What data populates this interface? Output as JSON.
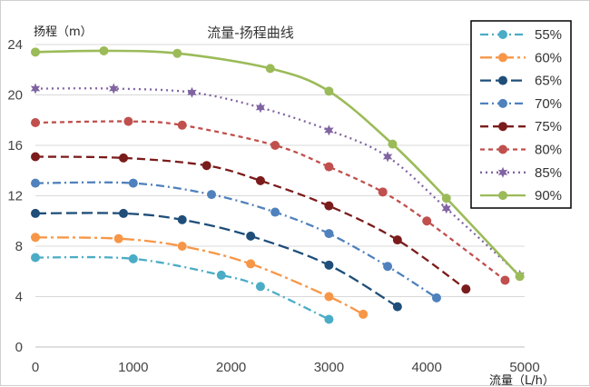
{
  "chart_data": {
    "type": "line",
    "title": "流量-扬程曲线",
    "xlabel": "流量（L/h）",
    "ylabel": "扬程（m）",
    "xlim": [
      0,
      5000
    ],
    "ylim": [
      0,
      24
    ],
    "xticks": [
      0,
      1000,
      2000,
      3000,
      4000,
      5000
    ],
    "yticks": [
      0,
      4,
      8,
      12,
      16,
      20,
      24
    ],
    "grid": "horizontal",
    "legend": "right",
    "series": [
      {
        "name": "55%",
        "color": "#4bacc6",
        "dash": "dashdot",
        "marker": "circle",
        "points": [
          [
            0,
            7.1
          ],
          [
            1000,
            7.0
          ],
          [
            1900,
            5.7
          ],
          [
            2300,
            4.8
          ],
          [
            3000,
            2.2
          ]
        ]
      },
      {
        "name": "60%",
        "color": "#f79646",
        "dash": "longdashdot",
        "marker": "circle",
        "points": [
          [
            0,
            8.7
          ],
          [
            850,
            8.6
          ],
          [
            1500,
            8.0
          ],
          [
            2200,
            6.6
          ],
          [
            3000,
            4.0
          ],
          [
            3350,
            2.6
          ]
        ]
      },
      {
        "name": "65%",
        "color": "#1f4e79",
        "dash": "longdash",
        "marker": "circle",
        "points": [
          [
            0,
            10.6
          ],
          [
            900,
            10.6
          ],
          [
            1500,
            10.1
          ],
          [
            2200,
            8.8
          ],
          [
            3000,
            6.5
          ],
          [
            3700,
            3.2
          ]
        ]
      },
      {
        "name": "70%",
        "color": "#4f81bd",
        "dash": "dashdot",
        "marker": "circle",
        "points": [
          [
            0,
            13.0
          ],
          [
            1000,
            13.0
          ],
          [
            1800,
            12.1
          ],
          [
            2450,
            10.7
          ],
          [
            3000,
            9.0
          ],
          [
            3600,
            6.4
          ],
          [
            4100,
            3.9
          ]
        ]
      },
      {
        "name": "75%",
        "color": "#7b1c1c",
        "dash": "dash",
        "marker": "circle",
        "points": [
          [
            0,
            15.1
          ],
          [
            900,
            15.0
          ],
          [
            1750,
            14.4
          ],
          [
            2300,
            13.2
          ],
          [
            3000,
            11.2
          ],
          [
            3700,
            8.5
          ],
          [
            4400,
            4.6
          ]
        ]
      },
      {
        "name": "80%",
        "color": "#c0504d",
        "dash": "shortdash",
        "marker": "circle",
        "points": [
          [
            0,
            17.8
          ],
          [
            950,
            17.9
          ],
          [
            1500,
            17.6
          ],
          [
            2450,
            16.0
          ],
          [
            3000,
            14.3
          ],
          [
            3550,
            12.3
          ],
          [
            4000,
            10.0
          ],
          [
            4800,
            5.3
          ]
        ]
      },
      {
        "name": "85%",
        "color": "#8064a2",
        "dash": "dot",
        "marker": "star",
        "points": [
          [
            0,
            20.5
          ],
          [
            800,
            20.5
          ],
          [
            1600,
            20.2
          ],
          [
            2300,
            19.0
          ],
          [
            3000,
            17.2
          ],
          [
            3600,
            15.1
          ],
          [
            4200,
            11.0
          ],
          [
            4950,
            5.7
          ]
        ]
      },
      {
        "name": "90%",
        "color": "#9bbb59",
        "dash": "solid",
        "marker": "circle",
        "points": [
          [
            0,
            23.4
          ],
          [
            700,
            23.5
          ],
          [
            1450,
            23.3
          ],
          [
            2400,
            22.1
          ],
          [
            3000,
            20.3
          ],
          [
            3650,
            16.1
          ],
          [
            4200,
            11.8
          ],
          [
            4950,
            5.6
          ]
        ]
      }
    ]
  }
}
